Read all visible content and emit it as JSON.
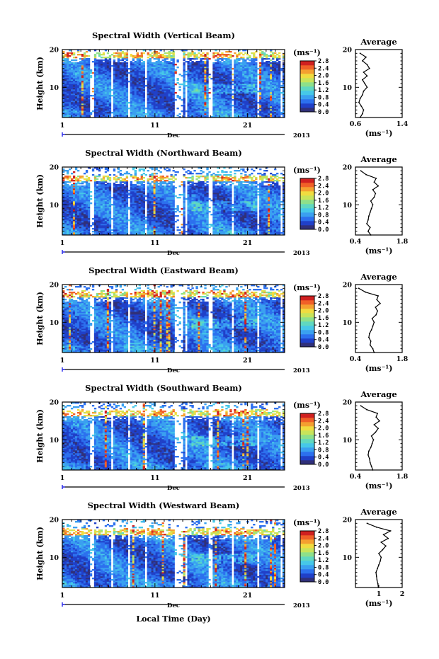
{
  "figure": {
    "xlabel": "Local Time (Day)",
    "month_label": "Dec",
    "year_label": "2013",
    "unit_label": "(ms⁻¹)",
    "average_title": "Average",
    "colormap": [
      "#30307a",
      "#2040c8",
      "#2c70ee",
      "#3aa0f0",
      "#46c8e8",
      "#60d8c0",
      "#8ee08a",
      "#c8e45a",
      "#f0dc40",
      "#f4a030",
      "#f06028",
      "#d02020"
    ]
  },
  "chart_data": [
    {
      "type": "heatmap",
      "title": "Spectral Width (Vertical Beam)",
      "ylabel": "Height (km)",
      "xlim": [
        1,
        25
      ],
      "ylim": [
        2,
        20
      ],
      "x_ticks": [
        "1",
        "11",
        "21"
      ],
      "y_ticks": [
        "10",
        "20"
      ],
      "colorbar_range": [
        0.0,
        2.8
      ],
      "colorbar_ticks": [
        "0.0",
        "0.4",
        "0.8",
        "1.2",
        "1.6",
        "2.0",
        "2.4",
        "2.8"
      ],
      "cloud_top_km": 18.6,
      "average": {
        "title": "Average",
        "xlabel": "(ms⁻¹)",
        "xlim": [
          0.6,
          1.4
        ],
        "x_ticks": [
          "0.6",
          "1.4"
        ],
        "y_ticks": [
          "10",
          "20"
        ],
        "height_km": [
          2,
          3,
          4,
          5,
          6,
          7,
          8,
          9,
          10,
          11,
          12,
          13,
          14,
          15,
          16,
          17,
          18,
          19
        ],
        "value": [
          0.68,
          0.72,
          0.74,
          0.7,
          0.66,
          0.68,
          0.72,
          0.74,
          0.8,
          0.76,
          0.72,
          0.8,
          0.74,
          0.84,
          0.8,
          0.72,
          0.78,
          0.68
        ]
      }
    },
    {
      "type": "heatmap",
      "title": "Spectral Width (Northward Beam)",
      "ylabel": "Height (km)",
      "xlim": [
        1,
        25
      ],
      "ylim": [
        2,
        20
      ],
      "x_ticks": [
        "1",
        "11",
        "21"
      ],
      "y_ticks": [
        "10",
        "20"
      ],
      "colorbar_range": [
        0.0,
        2.8
      ],
      "colorbar_ticks": [
        "0.0",
        "0.4",
        "0.8",
        "1.2",
        "1.6",
        "2.0",
        "2.4",
        "2.8"
      ],
      "cloud_top_km": 17.0,
      "average": {
        "title": "Average",
        "xlabel": "(ms⁻¹)",
        "xlim": [
          0.4,
          1.8
        ],
        "x_ticks": [
          "0.4",
          "1.8"
        ],
        "y_ticks": [
          "10",
          "20"
        ],
        "height_km": [
          2,
          3,
          4,
          5,
          6,
          7,
          8,
          9,
          10,
          11,
          12,
          13,
          14,
          15,
          16,
          17,
          18,
          19
        ],
        "value": [
          0.86,
          0.78,
          0.84,
          0.74,
          0.78,
          0.8,
          0.84,
          0.88,
          0.92,
          0.86,
          0.96,
          1.0,
          0.92,
          1.08,
          0.96,
          1.02,
          0.72,
          0.56
        ]
      }
    },
    {
      "type": "heatmap",
      "title": "Spectral Width (Eastward Beam)",
      "ylabel": "Height (km)",
      "xlim": [
        1,
        25
      ],
      "ylim": [
        2,
        20
      ],
      "x_ticks": [
        "1",
        "11",
        "21"
      ],
      "y_ticks": [
        "10",
        "20"
      ],
      "colorbar_range": [
        0.0,
        2.8
      ],
      "colorbar_ticks": [
        "0.0",
        "0.4",
        "0.8",
        "1.2",
        "1.6",
        "2.0",
        "2.4",
        "2.8"
      ],
      "cloud_top_km": 17.6,
      "average": {
        "title": "Average",
        "xlabel": "(ms⁻¹)",
        "xlim": [
          0.4,
          1.8
        ],
        "x_ticks": [
          "0.4",
          "1.8"
        ],
        "y_ticks": [
          "10",
          "20"
        ],
        "height_km": [
          2,
          3,
          4,
          5,
          6,
          7,
          8,
          9,
          10,
          11,
          12,
          13,
          14,
          15,
          16,
          17,
          18,
          19
        ],
        "value": [
          0.96,
          0.92,
          0.84,
          0.86,
          0.8,
          0.82,
          0.88,
          0.92,
          0.96,
          0.9,
          1.02,
          1.06,
          1.0,
          1.14,
          1.04,
          1.08,
          0.7,
          0.5
        ]
      }
    },
    {
      "type": "heatmap",
      "title": "Spectral Width (Southward Beam)",
      "ylabel": "Height (km)",
      "xlim": [
        1,
        25
      ],
      "ylim": [
        2,
        20
      ],
      "x_ticks": [
        "1",
        "11",
        "21"
      ],
      "y_ticks": [
        "10",
        "20"
      ],
      "colorbar_range": [
        0.0,
        2.8
      ],
      "colorbar_ticks": [
        "0.0",
        "0.4",
        "0.8",
        "1.2",
        "1.6",
        "2.0",
        "2.4",
        "2.8"
      ],
      "cloud_top_km": 17.2,
      "average": {
        "title": "Average",
        "xlabel": "(ms⁻¹)",
        "xlim": [
          0.4,
          1.8
        ],
        "x_ticks": [
          "0.4",
          "1.8"
        ],
        "y_ticks": [
          "10",
          "20"
        ],
        "height_km": [
          2,
          3,
          4,
          5,
          6,
          7,
          8,
          9,
          10,
          11,
          12,
          13,
          14,
          15,
          16,
          17,
          18,
          19
        ],
        "value": [
          0.92,
          0.88,
          0.84,
          0.82,
          0.78,
          0.8,
          0.86,
          0.9,
          0.94,
          0.88,
          1.0,
          1.08,
          0.96,
          1.12,
          1.02,
          1.06,
          0.74,
          0.56
        ]
      }
    },
    {
      "type": "heatmap",
      "title": "Spectral Width (Westward Beam)",
      "ylabel": "Height (km)",
      "xlim": [
        1,
        25
      ],
      "ylim": [
        2,
        20
      ],
      "x_ticks": [
        "1",
        "11",
        "21"
      ],
      "y_ticks": [
        "10",
        "20"
      ],
      "colorbar_range": [
        0.0,
        2.8
      ],
      "colorbar_ticks": [
        "0.0",
        "0.4",
        "0.8",
        "1.2",
        "1.6",
        "2.0",
        "2.4",
        "2.8"
      ],
      "cloud_top_km": 16.8,
      "average": {
        "title": "Average",
        "xlabel": "(ms⁻¹)",
        "xlim": [
          0,
          2
        ],
        "x_ticks": [
          "1",
          "2"
        ],
        "y_ticks": [
          "10",
          "20"
        ],
        "height_km": [
          2,
          3,
          4,
          5,
          6,
          7,
          8,
          9,
          10,
          11,
          12,
          13,
          14,
          15,
          16,
          17,
          18,
          19
        ],
        "value": [
          0.98,
          0.96,
          0.92,
          0.9,
          0.88,
          0.94,
          1.0,
          1.06,
          1.1,
          1.0,
          1.16,
          1.3,
          1.1,
          1.4,
          1.2,
          1.5,
          0.9,
          0.5
        ]
      }
    }
  ]
}
